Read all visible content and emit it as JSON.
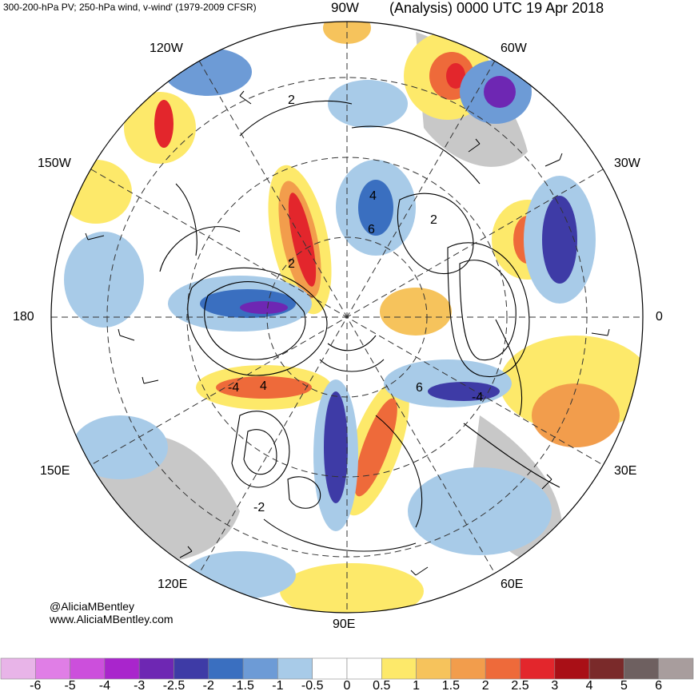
{
  "header": {
    "left_title": "300-200-hPa PV; 250-hPa wind, v-wind' (1979-2009 CFSR)",
    "right_title": "(Analysis) 0000 UTC 19 Apr 2018"
  },
  "longitude_labels": {
    "w90": "90W",
    "w60": "60W",
    "w120": "120W",
    "w150": "150W",
    "w30": "30W",
    "l180": "180",
    "l0": "0",
    "e150": "150E",
    "e30": "30E",
    "e120": "120E",
    "e60": "60E",
    "e90": "90E"
  },
  "contour_labels": [
    "2",
    "2",
    "4",
    "6",
    "2",
    "-4",
    "4",
    "6",
    "-4",
    "-2"
  ],
  "credit": {
    "handle": "@AliciaMBentley",
    "url": "www.AliciaMBentley.com"
  },
  "colorbar": {
    "ticks": [
      "-6",
      "-5",
      "-4",
      "-3",
      "-2.5",
      "-2",
      "-1.5",
      "-1",
      "-0.5",
      "0",
      "0.5",
      "1",
      "1.5",
      "2",
      "2.5",
      "3",
      "4",
      "5",
      "6"
    ],
    "colors": [
      "#e8b4e8",
      "#e07ee6",
      "#cc4fdc",
      "#a925cc",
      "#6e27b3",
      "#3e3ba6",
      "#3a6fc0",
      "#6d9bd6",
      "#a8cbe8",
      "#ffffff",
      "#ffffff",
      "#fde96a",
      "#f6c35c",
      "#f29d4c",
      "#ee6a3a",
      "#e3262c",
      "#a90f16",
      "#7a2a2a",
      "#6e6060",
      "#a89d9d"
    ]
  }
}
